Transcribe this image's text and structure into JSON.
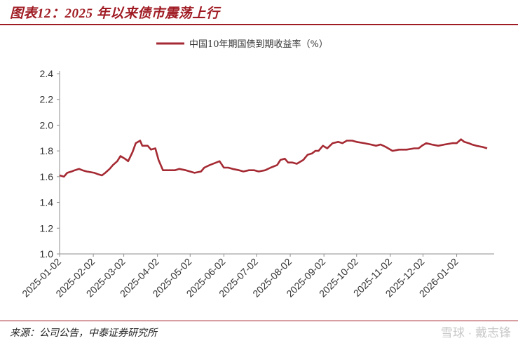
{
  "header": {
    "title": "图表12：2025 年以来债市震荡上行"
  },
  "footer": {
    "source": "来源：公司公告，中泰证券研究所",
    "watermark": "雪球 · 戴志锋"
  },
  "colors": {
    "accent": "#a01c24",
    "line": "#a52a33"
  },
  "chart_data": {
    "type": "line",
    "title": "",
    "xlabel": "",
    "ylabel": "",
    "ylim": [
      1.0,
      2.4
    ],
    "yticks": [
      "1.0",
      "1.2",
      "1.4",
      "1.6",
      "1.8",
      "2.0",
      "2.2",
      "2.4"
    ],
    "xticks": [
      "2025-01-02",
      "2025-02-02",
      "2025-03-02",
      "2025-04-02",
      "2025-05-02",
      "2025-06-02",
      "2025-07-02",
      "2025-08-02",
      "2025-09-02",
      "2025-10-02",
      "2025-11-02",
      "2025-12-02",
      "2026-01-02"
    ],
    "legend": "top-center",
    "grid": false,
    "series": [
      {
        "name": "中国10年期国债到期收益率（%）",
        "points": [
          [
            "2025-01-02",
            1.61
          ],
          [
            "2025-01-06",
            1.6
          ],
          [
            "2025-01-09",
            1.63
          ],
          [
            "2025-01-13",
            1.64
          ],
          [
            "2025-01-16",
            1.65
          ],
          [
            "2025-01-20",
            1.66
          ],
          [
            "2025-01-23",
            1.65
          ],
          [
            "2025-01-27",
            1.64
          ],
          [
            "2025-02-03",
            1.63
          ],
          [
            "2025-02-06",
            1.62
          ],
          [
            "2025-02-10",
            1.61
          ],
          [
            "2025-02-13",
            1.63
          ],
          [
            "2025-02-17",
            1.66
          ],
          [
            "2025-02-20",
            1.69
          ],
          [
            "2025-02-24",
            1.72
          ],
          [
            "2025-02-27",
            1.76
          ],
          [
            "2025-03-03",
            1.74
          ],
          [
            "2025-03-06",
            1.72
          ],
          [
            "2025-03-10",
            1.79
          ],
          [
            "2025-03-13",
            1.86
          ],
          [
            "2025-03-17",
            1.88
          ],
          [
            "2025-03-19",
            1.84
          ],
          [
            "2025-03-24",
            1.84
          ],
          [
            "2025-03-27",
            1.81
          ],
          [
            "2025-03-31",
            1.82
          ],
          [
            "2025-04-03",
            1.73
          ],
          [
            "2025-04-07",
            1.65
          ],
          [
            "2025-04-10",
            1.65
          ],
          [
            "2025-04-14",
            1.65
          ],
          [
            "2025-04-18",
            1.65
          ],
          [
            "2025-04-22",
            1.66
          ],
          [
            "2025-04-28",
            1.65
          ],
          [
            "2025-05-06",
            1.63
          ],
          [
            "2025-05-12",
            1.64
          ],
          [
            "2025-05-15",
            1.67
          ],
          [
            "2025-05-20",
            1.69
          ],
          [
            "2025-05-26",
            1.71
          ],
          [
            "2025-05-29",
            1.72
          ],
          [
            "2025-06-02",
            1.67
          ],
          [
            "2025-06-06",
            1.67
          ],
          [
            "2025-06-10",
            1.66
          ],
          [
            "2025-06-16",
            1.65
          ],
          [
            "2025-06-20",
            1.64
          ],
          [
            "2025-06-25",
            1.65
          ],
          [
            "2025-06-30",
            1.65
          ],
          [
            "2025-07-04",
            1.64
          ],
          [
            "2025-07-10",
            1.65
          ],
          [
            "2025-07-15",
            1.67
          ],
          [
            "2025-07-21",
            1.69
          ],
          [
            "2025-07-24",
            1.73
          ],
          [
            "2025-07-28",
            1.74
          ],
          [
            "2025-07-31",
            1.71
          ],
          [
            "2025-08-04",
            1.71
          ],
          [
            "2025-08-08",
            1.7
          ],
          [
            "2025-08-14",
            1.73
          ],
          [
            "2025-08-18",
            1.77
          ],
          [
            "2025-08-22",
            1.78
          ],
          [
            "2025-08-25",
            1.8
          ],
          [
            "2025-08-28",
            1.8
          ],
          [
            "2025-09-01",
            1.84
          ],
          [
            "2025-09-05",
            1.82
          ],
          [
            "2025-09-10",
            1.86
          ],
          [
            "2025-09-15",
            1.87
          ],
          [
            "2025-09-19",
            1.86
          ],
          [
            "2025-09-23",
            1.88
          ],
          [
            "2025-09-28",
            1.88
          ],
          [
            "2025-10-02",
            1.87
          ],
          [
            "2025-10-09",
            1.86
          ],
          [
            "2025-10-15",
            1.85
          ],
          [
            "2025-10-20",
            1.84
          ],
          [
            "2025-10-24",
            1.85
          ],
          [
            "2025-10-29",
            1.83
          ],
          [
            "2025-11-04",
            1.8
          ],
          [
            "2025-11-10",
            1.81
          ],
          [
            "2025-11-17",
            1.81
          ],
          [
            "2025-11-24",
            1.82
          ],
          [
            "2025-11-28",
            1.82
          ],
          [
            "2025-12-01",
            1.84
          ],
          [
            "2025-12-05",
            1.86
          ],
          [
            "2025-12-10",
            1.85
          ],
          [
            "2025-12-16",
            1.84
          ],
          [
            "2025-12-22",
            1.85
          ],
          [
            "2025-12-29",
            1.86
          ],
          [
            "2026-01-02",
            1.86
          ],
          [
            "2026-01-06",
            1.89
          ],
          [
            "2026-01-09",
            1.87
          ],
          [
            "2026-01-13",
            1.86
          ],
          [
            "2026-01-16",
            1.85
          ],
          [
            "2026-01-20",
            1.84
          ],
          [
            "2026-01-26",
            1.83
          ],
          [
            "2026-01-30",
            1.82
          ]
        ]
      }
    ]
  }
}
